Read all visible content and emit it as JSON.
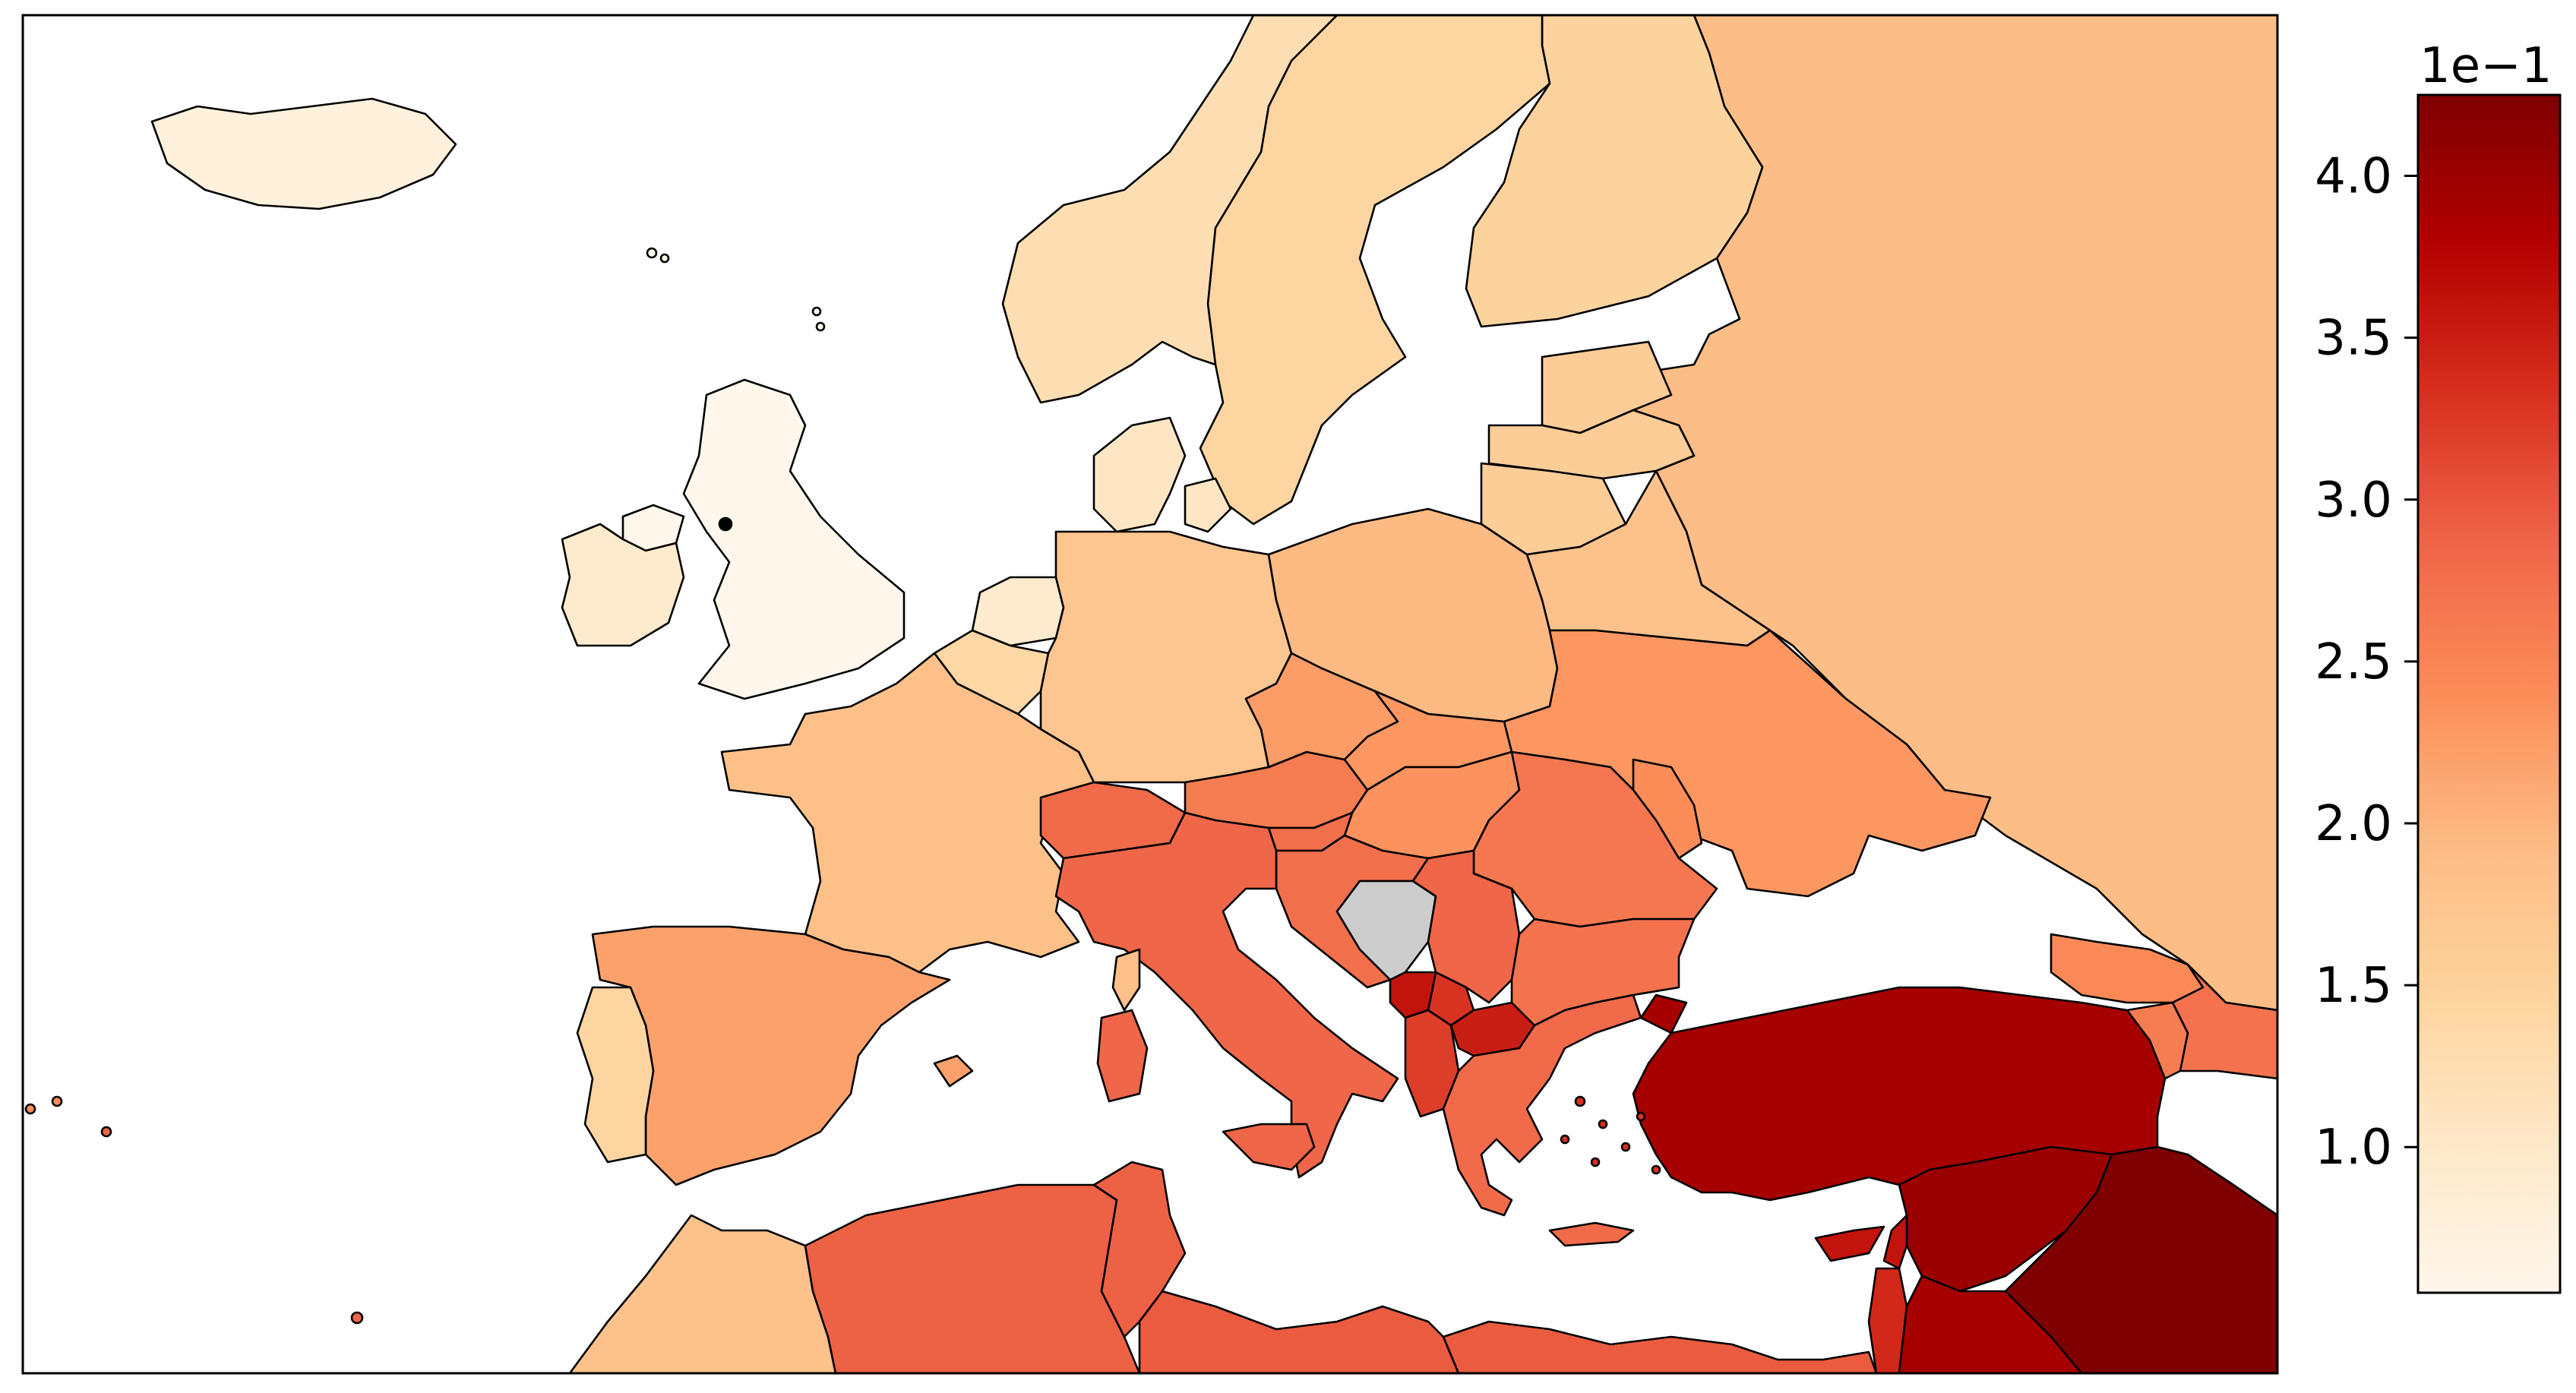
{
  "colorbar": {
    "exponent_label": "1e−1",
    "ticks": [
      {
        "value": 1.0,
        "label": "1.0"
      },
      {
        "value": 1.5,
        "label": "1.5"
      },
      {
        "value": 2.0,
        "label": "2.0"
      },
      {
        "value": 2.5,
        "label": "2.5"
      },
      {
        "value": 3.0,
        "label": "3.0"
      },
      {
        "value": 3.5,
        "label": "3.5"
      },
      {
        "value": 4.0,
        "label": "4.0"
      }
    ],
    "range": [
      0.55,
      4.25
    ],
    "colormap": "OrRd",
    "colormap_stops": [
      "#fff7ec",
      "#fee8c8",
      "#fdd49e",
      "#fdbb84",
      "#fc8d59",
      "#ef6548",
      "#d7301f",
      "#b30000",
      "#7f0000"
    ]
  },
  "chart_data": {
    "type": "choropleth",
    "region": "Europe, North Africa, Middle East",
    "scale_multiplier": 0.1,
    "values": {
      "Iceland": 0.75,
      "Ireland": 0.95,
      "United Kingdom": 0.55,
      "Norway": 1.25,
      "Sweden": 1.45,
      "Finland": 1.5,
      "Russia": 1.9,
      "Estonia": 1.6,
      "Latvia": 1.6,
      "Lithuania": 1.6,
      "Belarus": 1.8,
      "Denmark": 1.05,
      "Netherlands": 0.95,
      "Belgium": 1.4,
      "Germany": 1.75,
      "Poland": 1.95,
      "France": 1.85,
      "Spain": 2.2,
      "Portugal": 1.45,
      "Switzerland": 2.8,
      "Austria": 2.6,
      "Czechia": 2.25,
      "Slovakia": 2.3,
      "Hungary": 2.35,
      "Slovenia": 2.75,
      "Croatia": 2.75,
      "Bosnia": 2.95,
      "Serbia": 2.85,
      "Montenegro": 3.6,
      "Albania": 3.2,
      "North Macedonia": 3.5,
      "Kosovo": 3.3,
      "Bulgaria": 2.7,
      "Romania": 2.65,
      "Moldova": 2.4,
      "Ukraine": 2.3,
      "Greece": 2.8,
      "Italy": 2.85,
      "Turkey": 3.9,
      "Cyprus": 3.6,
      "Georgia": 2.45,
      "Armenia": 2.6,
      "Azerbaijan": 2.7,
      "Morocco": 1.8,
      "Algeria": 2.9,
      "Tunisia": 2.9,
      "Libya": 2.95,
      "Egypt": 2.95,
      "Syria": 4.0,
      "Iraq": 4.25,
      "Lebanon": 3.6,
      "Israel": 3.4,
      "Jordan": 3.9
    }
  }
}
